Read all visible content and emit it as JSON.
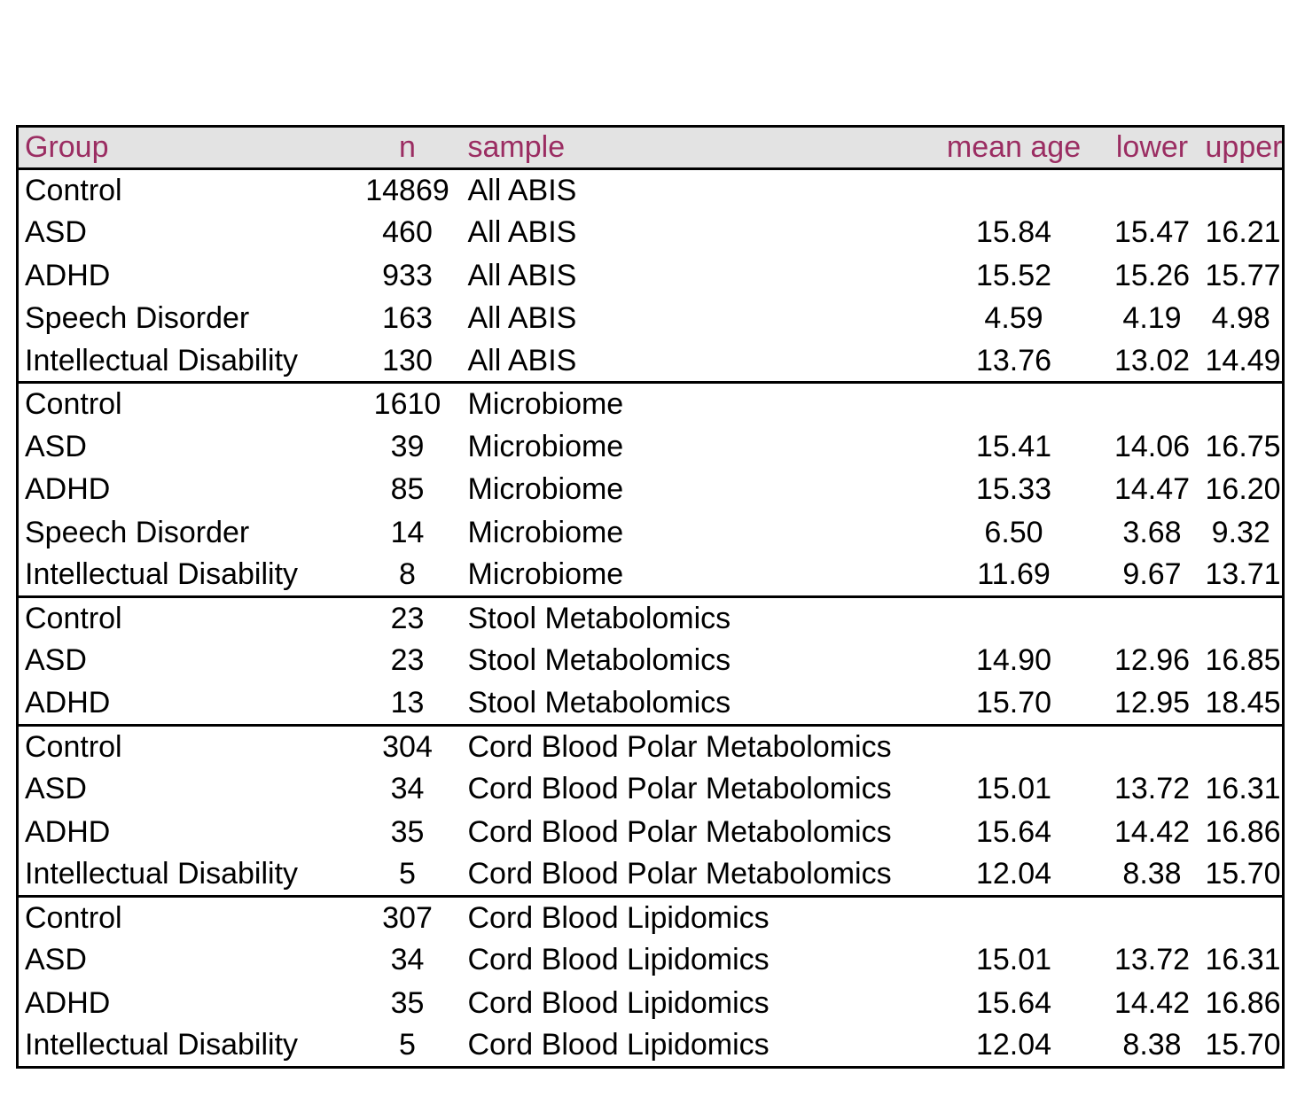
{
  "chart_data": {
    "type": "table",
    "title": "",
    "columns": [
      "Group",
      "n",
      "sample",
      "mean age",
      "lower",
      "upper"
    ],
    "rows": [
      {
        "group": "Control",
        "n": "14869",
        "sample": "All ABIS",
        "mean_age": "",
        "lower": "",
        "upper": "",
        "section": 0
      },
      {
        "group": "ASD",
        "n": "460",
        "sample": "All ABIS",
        "mean_age": "15.84",
        "lower": "15.47",
        "upper": "16.21",
        "section": 0
      },
      {
        "group": "ADHD",
        "n": "933",
        "sample": "All ABIS",
        "mean_age": "15.52",
        "lower": "15.26",
        "upper": "15.77",
        "section": 0
      },
      {
        "group": "Speech Disorder",
        "n": "163",
        "sample": "All ABIS",
        "mean_age": "4.59",
        "lower": "4.19",
        "upper": "4.98",
        "section": 0
      },
      {
        "group": "Intellectual Disability",
        "n": "130",
        "sample": "All ABIS",
        "mean_age": "13.76",
        "lower": "13.02",
        "upper": "14.49",
        "section": 0
      },
      {
        "group": "Control",
        "n": "1610",
        "sample": "Microbiome",
        "mean_age": "",
        "lower": "",
        "upper": "",
        "section": 1
      },
      {
        "group": "ASD",
        "n": "39",
        "sample": "Microbiome",
        "mean_age": "15.41",
        "lower": "14.06",
        "upper": "16.75",
        "section": 1
      },
      {
        "group": "ADHD",
        "n": "85",
        "sample": "Microbiome",
        "mean_age": "15.33",
        "lower": "14.47",
        "upper": "16.20",
        "section": 1
      },
      {
        "group": "Speech Disorder",
        "n": "14",
        "sample": "Microbiome",
        "mean_age": "6.50",
        "lower": "3.68",
        "upper": "9.32",
        "section": 1
      },
      {
        "group": "Intellectual Disability",
        "n": "8",
        "sample": "Microbiome",
        "mean_age": "11.69",
        "lower": "9.67",
        "upper": "13.71",
        "section": 1
      },
      {
        "group": "Control",
        "n": "23",
        "sample": "Stool Metabolomics",
        "mean_age": "",
        "lower": "",
        "upper": "",
        "section": 2
      },
      {
        "group": "ASD",
        "n": "23",
        "sample": "Stool Metabolomics",
        "mean_age": "14.90",
        "lower": "12.96",
        "upper": "16.85",
        "section": 2
      },
      {
        "group": "ADHD",
        "n": "13",
        "sample": "Stool Metabolomics",
        "mean_age": "15.70",
        "lower": "12.95",
        "upper": "18.45",
        "section": 2
      },
      {
        "group": "Control",
        "n": "304",
        "sample": "Cord Blood Polar Metabolomics",
        "mean_age": "",
        "lower": "",
        "upper": "",
        "section": 3
      },
      {
        "group": "ASD",
        "n": "34",
        "sample": "Cord Blood Polar Metabolomics",
        "mean_age": "15.01",
        "lower": "13.72",
        "upper": "16.31",
        "section": 3
      },
      {
        "group": "ADHD",
        "n": "35",
        "sample": "Cord Blood Polar Metabolomics",
        "mean_age": "15.64",
        "lower": "14.42",
        "upper": "16.86",
        "section": 3
      },
      {
        "group": "Intellectual Disability",
        "n": "5",
        "sample": "Cord Blood Polar Metabolomics",
        "mean_age": "12.04",
        "lower": "8.38",
        "upper": "15.70",
        "section": 3
      },
      {
        "group": "Control",
        "n": "307",
        "sample": "Cord Blood Lipidomics",
        "mean_age": "",
        "lower": "",
        "upper": "",
        "section": 4
      },
      {
        "group": "ASD",
        "n": "34",
        "sample": "Cord Blood Lipidomics",
        "mean_age": "15.01",
        "lower": "13.72",
        "upper": "16.31",
        "section": 4
      },
      {
        "group": "ADHD",
        "n": "35",
        "sample": "Cord Blood Lipidomics",
        "mean_age": "15.64",
        "lower": "14.42",
        "upper": "16.86",
        "section": 4
      },
      {
        "group": "Intellectual Disability",
        "n": "5",
        "sample": "Cord Blood Lipidomics",
        "mean_age": "12.04",
        "lower": "8.38",
        "upper": "15.70",
        "section": 4
      }
    ]
  },
  "colors": {
    "header_text": "#9b2d62",
    "header_background": "#e3e3e3",
    "body_text": "#000000"
  }
}
